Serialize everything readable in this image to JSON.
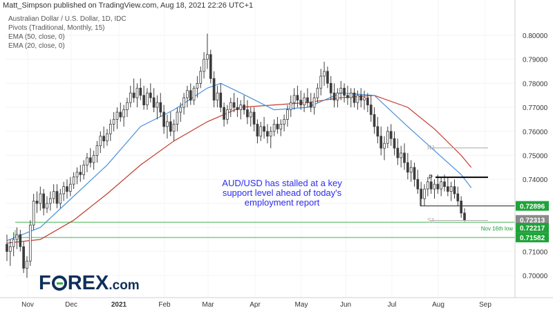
{
  "header": {
    "publisher": "Matt_Simpson published on TradingView.com, Aug 18, 2021 22:26 UTC+1"
  },
  "indicators": [
    "Australian Dollar / U.S. Dollar, 1D, IDC",
    "Pivots (Traditional, Monthly, 15)",
    "EMA (50, close, 0)",
    "EMA (20, close, 0)"
  ],
  "annotation": "AUD/USD has stalled at a key support level ahead of today's employment report",
  "logo": {
    "part1": "F",
    "part2": "REX",
    "suffix": ".com"
  },
  "colors": {
    "candle": "#3c3c3c",
    "ema50": "#c0392b",
    "ema20": "#4a90d9",
    "support_line": "#3bb54a",
    "pivot_line": "#000000",
    "r1_line": "#aaaaaa",
    "annotation": "#2c2cf0",
    "axis_label_green": "#1e9e3a"
  },
  "chart_data": {
    "type": "candlestick",
    "title": "Australian Dollar / U.S. Dollar, 1D, IDC",
    "ylim": [
      0.6945,
      0.8045
    ],
    "x_tick_labels": [
      "Nov",
      "Dec",
      "2021",
      "Feb",
      "Mar",
      "Apr",
      "May",
      "Jun",
      "Jul",
      "Aug",
      "Sep"
    ],
    "y_tick_labels": [
      "0.80000",
      "0.79000",
      "0.78000",
      "0.77000",
      "0.76000",
      "0.75000",
      "0.74000",
      "0.73000",
      "0.72000",
      "0.71000",
      "0.70000"
    ],
    "price_labels": [
      {
        "text": "0.72896",
        "value": 0.72896,
        "style": "green"
      },
      {
        "text": "0.72313",
        "value": 0.72313,
        "style": "gray"
      },
      {
        "text": "0.72217",
        "value": 0.72217,
        "style": "green"
      },
      {
        "text": "0.71582",
        "value": 0.71582,
        "style": "green"
      }
    ],
    "horizontal_levels": [
      {
        "name": "Nov 16th low",
        "value": 0.72217,
        "from": "Nov",
        "color": "green"
      },
      {
        "name": "",
        "value": 0.71582,
        "from": "Nov",
        "color": "green"
      },
      {
        "name": "",
        "value": 0.72896,
        "from": "Jul",
        "color": "black"
      }
    ],
    "pivots": [
      {
        "label": "R1",
        "value": 0.7531,
        "from": "Aug",
        "to": "Sep"
      },
      {
        "label": "P",
        "value": 0.7409,
        "from": "Aug",
        "to": "Sep"
      },
      {
        "label": "S1",
        "value": 0.7229,
        "from": "Aug",
        "to": "Sep"
      }
    ],
    "candles": [
      {
        "o": 0.713,
        "h": 0.717,
        "l": 0.706,
        "c": 0.71
      },
      {
        "o": 0.71,
        "h": 0.715,
        "l": 0.704,
        "c": 0.712
      },
      {
        "o": 0.712,
        "h": 0.718,
        "l": 0.708,
        "c": 0.715
      },
      {
        "o": 0.715,
        "h": 0.72,
        "l": 0.711,
        "c": 0.717
      },
      {
        "o": 0.717,
        "h": 0.719,
        "l": 0.71,
        "c": 0.712
      },
      {
        "o": 0.712,
        "h": 0.714,
        "l": 0.701,
        "c": 0.703
      },
      {
        "o": 0.703,
        "h": 0.708,
        "l": 0.699,
        "c": 0.706
      },
      {
        "o": 0.706,
        "h": 0.723,
        "l": 0.704,
        "c": 0.721
      },
      {
        "o": 0.721,
        "h": 0.734,
        "l": 0.719,
        "c": 0.731
      },
      {
        "o": 0.731,
        "h": 0.735,
        "l": 0.726,
        "c": 0.73
      },
      {
        "o": 0.73,
        "h": 0.737,
        "l": 0.727,
        "c": 0.734
      },
      {
        "o": 0.734,
        "h": 0.736,
        "l": 0.725,
        "c": 0.728
      },
      {
        "o": 0.728,
        "h": 0.733,
        "l": 0.726,
        "c": 0.73
      },
      {
        "o": 0.73,
        "h": 0.735,
        "l": 0.727,
        "c": 0.732
      },
      {
        "o": 0.732,
        "h": 0.738,
        "l": 0.73,
        "c": 0.735
      },
      {
        "o": 0.735,
        "h": 0.738,
        "l": 0.728,
        "c": 0.73
      },
      {
        "o": 0.73,
        "h": 0.736,
        "l": 0.728,
        "c": 0.734
      },
      {
        "o": 0.734,
        "h": 0.739,
        "l": 0.731,
        "c": 0.737
      },
      {
        "o": 0.737,
        "h": 0.74,
        "l": 0.732,
        "c": 0.735
      },
      {
        "o": 0.735,
        "h": 0.741,
        "l": 0.733,
        "c": 0.738
      },
      {
        "o": 0.738,
        "h": 0.743,
        "l": 0.736,
        "c": 0.741
      },
      {
        "o": 0.741,
        "h": 0.745,
        "l": 0.738,
        "c": 0.743
      },
      {
        "o": 0.743,
        "h": 0.746,
        "l": 0.739,
        "c": 0.742
      },
      {
        "o": 0.742,
        "h": 0.748,
        "l": 0.74,
        "c": 0.746
      },
      {
        "o": 0.746,
        "h": 0.751,
        "l": 0.743,
        "c": 0.749
      },
      {
        "o": 0.749,
        "h": 0.753,
        "l": 0.745,
        "c": 0.747
      },
      {
        "o": 0.747,
        "h": 0.752,
        "l": 0.744,
        "c": 0.75
      },
      {
        "o": 0.75,
        "h": 0.756,
        "l": 0.747,
        "c": 0.754
      },
      {
        "o": 0.754,
        "h": 0.76,
        "l": 0.751,
        "c": 0.758
      },
      {
        "o": 0.758,
        "h": 0.762,
        "l": 0.753,
        "c": 0.756
      },
      {
        "o": 0.756,
        "h": 0.761,
        "l": 0.754,
        "c": 0.759
      },
      {
        "o": 0.759,
        "h": 0.765,
        "l": 0.756,
        "c": 0.763
      },
      {
        "o": 0.763,
        "h": 0.768,
        "l": 0.76,
        "c": 0.765
      },
      {
        "o": 0.765,
        "h": 0.77,
        "l": 0.761,
        "c": 0.768
      },
      {
        "o": 0.768,
        "h": 0.772,
        "l": 0.764,
        "c": 0.766
      },
      {
        "o": 0.766,
        "h": 0.771,
        "l": 0.762,
        "c": 0.769
      },
      {
        "o": 0.769,
        "h": 0.774,
        "l": 0.766,
        "c": 0.772
      },
      {
        "o": 0.772,
        "h": 0.779,
        "l": 0.77,
        "c": 0.776
      },
      {
        "o": 0.776,
        "h": 0.782,
        "l": 0.772,
        "c": 0.774
      },
      {
        "o": 0.774,
        "h": 0.78,
        "l": 0.77,
        "c": 0.778
      },
      {
        "o": 0.778,
        "h": 0.782,
        "l": 0.773,
        "c": 0.775
      },
      {
        "o": 0.775,
        "h": 0.779,
        "l": 0.769,
        "c": 0.771
      },
      {
        "o": 0.771,
        "h": 0.778,
        "l": 0.769,
        "c": 0.776
      },
      {
        "o": 0.776,
        "h": 0.78,
        "l": 0.772,
        "c": 0.774
      },
      {
        "o": 0.774,
        "h": 0.778,
        "l": 0.768,
        "c": 0.77
      },
      {
        "o": 0.77,
        "h": 0.775,
        "l": 0.765,
        "c": 0.772
      },
      {
        "o": 0.772,
        "h": 0.776,
        "l": 0.766,
        "c": 0.768
      },
      {
        "o": 0.768,
        "h": 0.771,
        "l": 0.759,
        "c": 0.762
      },
      {
        "o": 0.762,
        "h": 0.767,
        "l": 0.757,
        "c": 0.764
      },
      {
        "o": 0.764,
        "h": 0.768,
        "l": 0.758,
        "c": 0.76
      },
      {
        "o": 0.76,
        "h": 0.765,
        "l": 0.756,
        "c": 0.763
      },
      {
        "o": 0.763,
        "h": 0.77,
        "l": 0.76,
        "c": 0.768
      },
      {
        "o": 0.768,
        "h": 0.772,
        "l": 0.764,
        "c": 0.77
      },
      {
        "o": 0.77,
        "h": 0.776,
        "l": 0.767,
        "c": 0.774
      },
      {
        "o": 0.774,
        "h": 0.779,
        "l": 0.77,
        "c": 0.777
      },
      {
        "o": 0.777,
        "h": 0.78,
        "l": 0.771,
        "c": 0.773
      },
      {
        "o": 0.773,
        "h": 0.779,
        "l": 0.771,
        "c": 0.778
      },
      {
        "o": 0.778,
        "h": 0.783,
        "l": 0.774,
        "c": 0.78
      },
      {
        "o": 0.78,
        "h": 0.787,
        "l": 0.778,
        "c": 0.785
      },
      {
        "o": 0.785,
        "h": 0.793,
        "l": 0.782,
        "c": 0.79
      },
      {
        "o": 0.79,
        "h": 0.8007,
        "l": 0.786,
        "c": 0.792
      },
      {
        "o": 0.792,
        "h": 0.794,
        "l": 0.78,
        "c": 0.782
      },
      {
        "o": 0.782,
        "h": 0.785,
        "l": 0.77,
        "c": 0.773
      },
      {
        "o": 0.773,
        "h": 0.779,
        "l": 0.77,
        "c": 0.776
      },
      {
        "o": 0.776,
        "h": 0.78,
        "l": 0.768,
        "c": 0.77
      },
      {
        "o": 0.77,
        "h": 0.772,
        "l": 0.762,
        "c": 0.765
      },
      {
        "o": 0.765,
        "h": 0.771,
        "l": 0.763,
        "c": 0.769
      },
      {
        "o": 0.769,
        "h": 0.774,
        "l": 0.766,
        "c": 0.772
      },
      {
        "o": 0.772,
        "h": 0.776,
        "l": 0.768,
        "c": 0.77
      },
      {
        "o": 0.77,
        "h": 0.774,
        "l": 0.766,
        "c": 0.769
      },
      {
        "o": 0.769,
        "h": 0.773,
        "l": 0.765,
        "c": 0.771
      },
      {
        "o": 0.771,
        "h": 0.775,
        "l": 0.767,
        "c": 0.769
      },
      {
        "o": 0.769,
        "h": 0.773,
        "l": 0.763,
        "c": 0.766
      },
      {
        "o": 0.766,
        "h": 0.77,
        "l": 0.762,
        "c": 0.768
      },
      {
        "o": 0.768,
        "h": 0.77,
        "l": 0.76,
        "c": 0.763
      },
      {
        "o": 0.763,
        "h": 0.765,
        "l": 0.755,
        "c": 0.758
      },
      {
        "o": 0.758,
        "h": 0.764,
        "l": 0.756,
        "c": 0.762
      },
      {
        "o": 0.762,
        "h": 0.766,
        "l": 0.757,
        "c": 0.76
      },
      {
        "o": 0.76,
        "h": 0.763,
        "l": 0.755,
        "c": 0.758
      },
      {
        "o": 0.758,
        "h": 0.762,
        "l": 0.753,
        "c": 0.76
      },
      {
        "o": 0.76,
        "h": 0.765,
        "l": 0.758,
        "c": 0.763
      },
      {
        "o": 0.763,
        "h": 0.766,
        "l": 0.759,
        "c": 0.761
      },
      {
        "o": 0.761,
        "h": 0.765,
        "l": 0.758,
        "c": 0.763
      },
      {
        "o": 0.763,
        "h": 0.767,
        "l": 0.76,
        "c": 0.765
      },
      {
        "o": 0.765,
        "h": 0.771,
        "l": 0.762,
        "c": 0.769
      },
      {
        "o": 0.769,
        "h": 0.775,
        "l": 0.766,
        "c": 0.772
      },
      {
        "o": 0.772,
        "h": 0.778,
        "l": 0.769,
        "c": 0.775
      },
      {
        "o": 0.775,
        "h": 0.779,
        "l": 0.77,
        "c": 0.773
      },
      {
        "o": 0.773,
        "h": 0.777,
        "l": 0.769,
        "c": 0.771
      },
      {
        "o": 0.771,
        "h": 0.776,
        "l": 0.768,
        "c": 0.774
      },
      {
        "o": 0.774,
        "h": 0.778,
        "l": 0.77,
        "c": 0.772
      },
      {
        "o": 0.772,
        "h": 0.776,
        "l": 0.768,
        "c": 0.77
      },
      {
        "o": 0.77,
        "h": 0.776,
        "l": 0.767,
        "c": 0.774
      },
      {
        "o": 0.774,
        "h": 0.78,
        "l": 0.772,
        "c": 0.778
      },
      {
        "o": 0.778,
        "h": 0.786,
        "l": 0.775,
        "c": 0.783
      },
      {
        "o": 0.783,
        "h": 0.789,
        "l": 0.779,
        "c": 0.785
      },
      {
        "o": 0.785,
        "h": 0.787,
        "l": 0.778,
        "c": 0.78
      },
      {
        "o": 0.78,
        "h": 0.783,
        "l": 0.773,
        "c": 0.776
      },
      {
        "o": 0.776,
        "h": 0.78,
        "l": 0.77,
        "c": 0.773
      },
      {
        "o": 0.773,
        "h": 0.778,
        "l": 0.77,
        "c": 0.776
      },
      {
        "o": 0.776,
        "h": 0.781,
        "l": 0.773,
        "c": 0.778
      },
      {
        "o": 0.778,
        "h": 0.78,
        "l": 0.772,
        "c": 0.775
      },
      {
        "o": 0.775,
        "h": 0.779,
        "l": 0.771,
        "c": 0.774
      },
      {
        "o": 0.774,
        "h": 0.778,
        "l": 0.77,
        "c": 0.776
      },
      {
        "o": 0.776,
        "h": 0.778,
        "l": 0.77,
        "c": 0.772
      },
      {
        "o": 0.772,
        "h": 0.777,
        "l": 0.769,
        "c": 0.775
      },
      {
        "o": 0.775,
        "h": 0.778,
        "l": 0.77,
        "c": 0.773
      },
      {
        "o": 0.773,
        "h": 0.777,
        "l": 0.769,
        "c": 0.774
      },
      {
        "o": 0.774,
        "h": 0.776,
        "l": 0.768,
        "c": 0.771
      },
      {
        "o": 0.771,
        "h": 0.775,
        "l": 0.764,
        "c": 0.767
      },
      {
        "o": 0.767,
        "h": 0.77,
        "l": 0.759,
        "c": 0.762
      },
      {
        "o": 0.762,
        "h": 0.766,
        "l": 0.755,
        "c": 0.758
      },
      {
        "o": 0.758,
        "h": 0.762,
        "l": 0.75,
        "c": 0.753
      },
      {
        "o": 0.753,
        "h": 0.758,
        "l": 0.748,
        "c": 0.755
      },
      {
        "o": 0.755,
        "h": 0.762,
        "l": 0.753,
        "c": 0.76
      },
      {
        "o": 0.76,
        "h": 0.763,
        "l": 0.754,
        "c": 0.757
      },
      {
        "o": 0.757,
        "h": 0.76,
        "l": 0.75,
        "c": 0.753
      },
      {
        "o": 0.753,
        "h": 0.757,
        "l": 0.746,
        "c": 0.749
      },
      {
        "o": 0.749,
        "h": 0.754,
        "l": 0.745,
        "c": 0.751
      },
      {
        "o": 0.751,
        "h": 0.755,
        "l": 0.744,
        "c": 0.747
      },
      {
        "o": 0.747,
        "h": 0.751,
        "l": 0.74,
        "c": 0.743
      },
      {
        "o": 0.743,
        "h": 0.748,
        "l": 0.739,
        "c": 0.745
      },
      {
        "o": 0.745,
        "h": 0.747,
        "l": 0.737,
        "c": 0.74
      },
      {
        "o": 0.74,
        "h": 0.744,
        "l": 0.734,
        "c": 0.736
      },
      {
        "o": 0.736,
        "h": 0.739,
        "l": 0.729,
        "c": 0.732
      },
      {
        "o": 0.732,
        "h": 0.738,
        "l": 0.729,
        "c": 0.736
      },
      {
        "o": 0.736,
        "h": 0.741,
        "l": 0.733,
        "c": 0.739
      },
      {
        "o": 0.739,
        "h": 0.742,
        "l": 0.734,
        "c": 0.736
      },
      {
        "o": 0.736,
        "h": 0.74,
        "l": 0.732,
        "c": 0.738
      },
      {
        "o": 0.738,
        "h": 0.742,
        "l": 0.734,
        "c": 0.736
      },
      {
        "o": 0.736,
        "h": 0.741,
        "l": 0.733,
        "c": 0.739
      },
      {
        "o": 0.739,
        "h": 0.742,
        "l": 0.735,
        "c": 0.737
      },
      {
        "o": 0.737,
        "h": 0.741,
        "l": 0.733,
        "c": 0.735
      },
      {
        "o": 0.735,
        "h": 0.739,
        "l": 0.731,
        "c": 0.737
      },
      {
        "o": 0.737,
        "h": 0.74,
        "l": 0.732,
        "c": 0.734
      },
      {
        "o": 0.734,
        "h": 0.737,
        "l": 0.729,
        "c": 0.731
      },
      {
        "o": 0.731,
        "h": 0.733,
        "l": 0.724,
        "c": 0.726
      },
      {
        "o": 0.726,
        "h": 0.728,
        "l": 0.7225,
        "c": 0.7231
      }
    ],
    "ema20": [
      [
        0,
        0.7145
      ],
      [
        10,
        0.72
      ],
      [
        20,
        0.733
      ],
      [
        30,
        0.746
      ],
      [
        40,
        0.762
      ],
      [
        50,
        0.769
      ],
      [
        60,
        0.778
      ],
      [
        64,
        0.78
      ],
      [
        70,
        0.776
      ],
      [
        80,
        0.769
      ],
      [
        90,
        0.77
      ],
      [
        100,
        0.776
      ],
      [
        110,
        0.775
      ],
      [
        120,
        0.762
      ],
      [
        128,
        0.752
      ],
      [
        136,
        0.742
      ],
      [
        139,
        0.7365
      ]
    ],
    "ema50": [
      [
        0,
        0.7135
      ],
      [
        10,
        0.715
      ],
      [
        20,
        0.723
      ],
      [
        30,
        0.734
      ],
      [
        40,
        0.746
      ],
      [
        50,
        0.756
      ],
      [
        60,
        0.764
      ],
      [
        70,
        0.77
      ],
      [
        80,
        0.771
      ],
      [
        90,
        0.772
      ],
      [
        100,
        0.774
      ],
      [
        110,
        0.775
      ],
      [
        120,
        0.77
      ],
      [
        128,
        0.761
      ],
      [
        136,
        0.75
      ],
      [
        139,
        0.745
      ]
    ],
    "month_index": {
      "Nov": 6,
      "Dec": 22,
      "2021": 38,
      "Feb": 54,
      "Mar": 70,
      "Apr": 86,
      "May": 102,
      "Jun": 118,
      "Jul": 134,
      "Aug": 150,
      "Sep": 166
    }
  }
}
